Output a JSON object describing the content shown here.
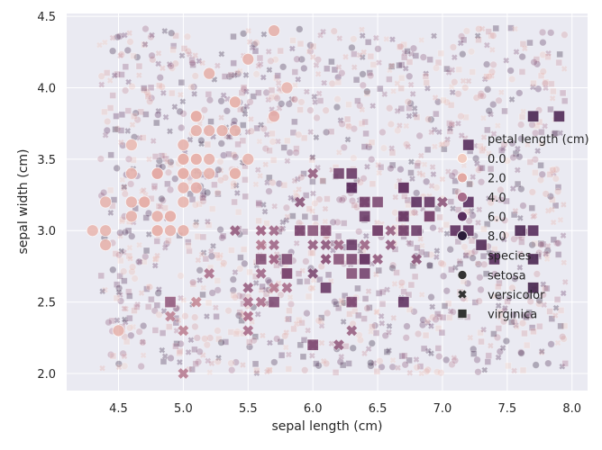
{
  "chart_data": {
    "type": "scatter",
    "title": "",
    "xlabel": "sepal length (cm)",
    "ylabel": "sepal width (cm)",
    "xlim": [
      4.1,
      8.12
    ],
    "ylim": [
      1.88,
      4.52
    ],
    "xticks": [
      "4.5",
      "5.0",
      "5.5",
      "6.0",
      "6.5",
      "7.0",
      "7.5",
      "8.0"
    ],
    "yticks": [
      "2.0",
      "2.5",
      "3.0",
      "3.5",
      "4.0",
      "4.5"
    ],
    "grid": true,
    "background": "#eaeaf2",
    "legend": {
      "placement": "center-right",
      "hue_title": "petal length (cm)",
      "hue_entries": [
        "0.0",
        "2.0",
        "4.0",
        "6.0",
        "8.0"
      ],
      "style_title": "species",
      "style_entries": [
        "setosa",
        "versicolor",
        "virginica"
      ]
    },
    "hue_colors": [
      "#f1ccc1",
      "#e2a8a3",
      "#a86d8b",
      "#5a2e5e",
      "#2b1b39"
    ],
    "series": [
      {
        "name": "setosa",
        "marker": "circle",
        "points": [
          [
            5.1,
            3.5,
            1.4
          ],
          [
            4.9,
            3.0,
            1.4
          ],
          [
            4.7,
            3.2,
            1.3
          ],
          [
            4.6,
            3.1,
            1.5
          ],
          [
            5.0,
            3.6,
            1.4
          ],
          [
            5.4,
            3.9,
            1.7
          ],
          [
            4.6,
            3.4,
            1.4
          ],
          [
            5.0,
            3.4,
            1.5
          ],
          [
            4.4,
            2.9,
            1.4
          ],
          [
            4.9,
            3.1,
            1.5
          ],
          [
            5.4,
            3.7,
            1.5
          ],
          [
            4.8,
            3.4,
            1.6
          ],
          [
            4.8,
            3.0,
            1.4
          ],
          [
            4.3,
            3.0,
            1.1
          ],
          [
            5.8,
            4.0,
            1.2
          ],
          [
            5.7,
            4.4,
            1.5
          ],
          [
            5.4,
            3.9,
            1.3
          ],
          [
            5.1,
            3.5,
            1.4
          ],
          [
            5.7,
            3.8,
            1.7
          ],
          [
            5.1,
            3.8,
            1.5
          ],
          [
            5.4,
            3.4,
            1.7
          ],
          [
            5.1,
            3.7,
            1.5
          ],
          [
            4.6,
            3.6,
            1.0
          ],
          [
            5.1,
            3.3,
            1.7
          ],
          [
            4.8,
            3.4,
            1.9
          ],
          [
            5.0,
            3.0,
            1.6
          ],
          [
            5.0,
            3.4,
            1.6
          ],
          [
            5.2,
            3.5,
            1.5
          ],
          [
            5.2,
            3.4,
            1.4
          ],
          [
            4.7,
            3.2,
            1.6
          ],
          [
            4.8,
            3.1,
            1.6
          ],
          [
            5.4,
            3.4,
            1.5
          ],
          [
            5.2,
            4.1,
            1.5
          ],
          [
            5.5,
            4.2,
            1.4
          ],
          [
            4.9,
            3.1,
            1.5
          ],
          [
            5.0,
            3.2,
            1.2
          ],
          [
            5.5,
            3.5,
            1.3
          ],
          [
            4.4,
            3.0,
            1.3
          ],
          [
            5.1,
            3.4,
            1.5
          ],
          [
            5.0,
            3.5,
            1.3
          ],
          [
            4.5,
            2.3,
            1.3
          ],
          [
            4.4,
            3.2,
            1.3
          ],
          [
            5.0,
            3.5,
            1.6
          ],
          [
            5.1,
            3.8,
            1.9
          ],
          [
            4.8,
            3.0,
            1.4
          ],
          [
            5.1,
            3.8,
            1.6
          ],
          [
            4.6,
            3.2,
            1.4
          ],
          [
            5.3,
            3.7,
            1.5
          ],
          [
            5.0,
            3.3,
            1.4
          ],
          [
            5.2,
            3.7,
            1.5
          ]
        ]
      },
      {
        "name": "versicolor",
        "marker": "x",
        "points": [
          [
            7.0,
            3.2,
            4.7
          ],
          [
            6.4,
            3.2,
            4.5
          ],
          [
            6.9,
            3.1,
            4.9
          ],
          [
            5.5,
            2.3,
            4.0
          ],
          [
            6.5,
            2.8,
            4.6
          ],
          [
            5.7,
            2.8,
            4.5
          ],
          [
            6.3,
            3.3,
            4.7
          ],
          [
            4.9,
            2.4,
            3.3
          ],
          [
            6.6,
            2.9,
            4.6
          ],
          [
            5.2,
            2.7,
            3.9
          ],
          [
            5.0,
            2.0,
            3.5
          ],
          [
            5.9,
            3.0,
            4.2
          ],
          [
            6.0,
            2.2,
            4.0
          ],
          [
            6.1,
            2.9,
            4.7
          ],
          [
            5.6,
            2.9,
            3.6
          ],
          [
            6.7,
            3.1,
            4.4
          ],
          [
            5.6,
            3.0,
            4.5
          ],
          [
            5.8,
            2.7,
            4.1
          ],
          [
            6.2,
            2.2,
            4.5
          ],
          [
            5.6,
            2.5,
            3.9
          ],
          [
            5.9,
            3.2,
            4.8
          ],
          [
            6.1,
            2.8,
            4.0
          ],
          [
            6.3,
            2.5,
            4.9
          ],
          [
            6.1,
            2.8,
            4.7
          ],
          [
            6.4,
            2.9,
            4.3
          ],
          [
            6.6,
            3.0,
            4.4
          ],
          [
            6.8,
            2.8,
            4.8
          ],
          [
            6.7,
            3.0,
            5.0
          ],
          [
            6.0,
            2.9,
            4.5
          ],
          [
            5.7,
            2.6,
            3.5
          ],
          [
            5.5,
            2.4,
            3.8
          ],
          [
            5.5,
            2.4,
            3.7
          ],
          [
            5.8,
            2.7,
            3.9
          ],
          [
            6.0,
            2.7,
            5.1
          ],
          [
            5.4,
            3.0,
            4.5
          ],
          [
            6.0,
            3.4,
            4.5
          ],
          [
            6.7,
            3.1,
            4.7
          ],
          [
            6.3,
            2.3,
            4.4
          ],
          [
            5.6,
            3.0,
            4.1
          ],
          [
            5.5,
            2.5,
            4.0
          ],
          [
            5.5,
            2.6,
            4.4
          ],
          [
            6.1,
            3.0,
            4.6
          ],
          [
            5.8,
            2.6,
            4.0
          ],
          [
            5.0,
            2.3,
            3.3
          ],
          [
            5.6,
            2.7,
            4.2
          ],
          [
            5.7,
            3.0,
            4.2
          ],
          [
            5.7,
            2.9,
            4.2
          ],
          [
            6.2,
            2.9,
            4.3
          ],
          [
            5.1,
            2.5,
            3.0
          ],
          [
            5.7,
            2.8,
            4.1
          ]
        ]
      },
      {
        "name": "virginica",
        "marker": "square",
        "points": [
          [
            6.3,
            3.3,
            6.0
          ],
          [
            5.8,
            2.7,
            5.1
          ],
          [
            7.1,
            3.0,
            5.9
          ],
          [
            6.3,
            2.9,
            5.6
          ],
          [
            6.5,
            3.0,
            5.8
          ],
          [
            7.6,
            3.0,
            6.6
          ],
          [
            4.9,
            2.5,
            4.5
          ],
          [
            7.3,
            2.9,
            6.3
          ],
          [
            6.7,
            2.5,
            5.8
          ],
          [
            7.2,
            3.6,
            6.1
          ],
          [
            6.5,
            3.2,
            5.1
          ],
          [
            6.4,
            2.7,
            5.3
          ],
          [
            6.8,
            3.0,
            5.5
          ],
          [
            5.7,
            2.5,
            5.0
          ],
          [
            5.8,
            2.8,
            5.1
          ],
          [
            6.4,
            3.2,
            5.3
          ],
          [
            6.5,
            3.0,
            5.5
          ],
          [
            7.7,
            3.8,
            6.7
          ],
          [
            7.7,
            2.6,
            6.9
          ],
          [
            6.0,
            2.2,
            5.0
          ],
          [
            6.9,
            3.2,
            5.7
          ],
          [
            5.6,
            2.8,
            4.9
          ],
          [
            7.7,
            2.8,
            6.7
          ],
          [
            6.3,
            2.7,
            4.9
          ],
          [
            6.7,
            3.3,
            5.7
          ],
          [
            7.2,
            3.2,
            6.0
          ],
          [
            6.2,
            2.8,
            4.8
          ],
          [
            6.1,
            3.0,
            4.9
          ],
          [
            6.4,
            2.8,
            5.6
          ],
          [
            7.2,
            3.0,
            5.8
          ],
          [
            7.4,
            2.8,
            6.1
          ],
          [
            7.9,
            3.8,
            6.4
          ],
          [
            6.4,
            2.8,
            5.6
          ],
          [
            6.3,
            2.8,
            5.1
          ],
          [
            6.1,
            2.6,
            5.6
          ],
          [
            7.7,
            3.0,
            6.1
          ],
          [
            6.3,
            3.4,
            5.6
          ],
          [
            6.4,
            3.1,
            5.5
          ],
          [
            6.0,
            3.0,
            4.8
          ],
          [
            6.9,
            3.1,
            5.4
          ],
          [
            6.7,
            3.1,
            5.6
          ],
          [
            6.9,
            3.1,
            5.1
          ],
          [
            5.8,
            2.7,
            5.1
          ],
          [
            6.8,
            3.2,
            5.9
          ],
          [
            6.7,
            3.3,
            5.7
          ],
          [
            6.7,
            3.0,
            5.2
          ],
          [
            6.3,
            2.5,
            5.0
          ],
          [
            6.5,
            3.0,
            5.2
          ],
          [
            6.2,
            3.4,
            5.4
          ],
          [
            5.9,
            3.0,
            5.1
          ]
        ]
      }
    ]
  }
}
